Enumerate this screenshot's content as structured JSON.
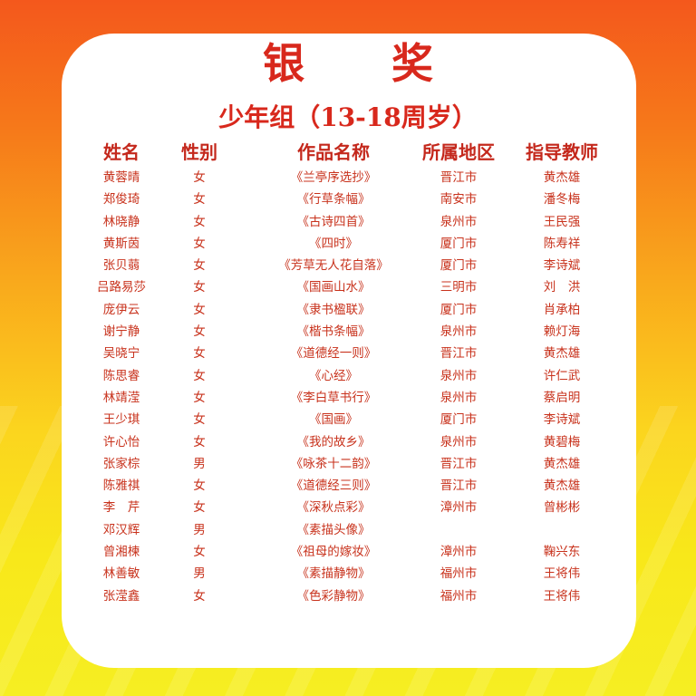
{
  "title": "银 奖",
  "subtitle": "少年组（13-18周岁）",
  "headers": {
    "name": "姓名",
    "gender": "性别",
    "work": "作品名称",
    "region": "所属地区",
    "teacher": "指导教师"
  },
  "rows": [
    {
      "name": "黄蓉晴",
      "gender": "女",
      "work": "《兰亭序选抄》",
      "region": "晋江市",
      "teacher": "黄杰雄"
    },
    {
      "name": "郑俊琦",
      "gender": "女",
      "work": "《行草条幅》",
      "region": "南安市",
      "teacher": "潘冬梅"
    },
    {
      "name": "林晓静",
      "gender": "女",
      "work": "《古诗四首》",
      "region": "泉州市",
      "teacher": "王民强"
    },
    {
      "name": "黄斯茵",
      "gender": "女",
      "work": "《四时》",
      "region": "厦门市",
      "teacher": "陈寿祥"
    },
    {
      "name": "张贝蒻",
      "gender": "女",
      "work": "《芳草无人花自落》",
      "region": "厦门市",
      "teacher": "李诗斌"
    },
    {
      "name": "吕路易莎",
      "gender": "女",
      "work": "《国画山水》",
      "region": "三明市",
      "teacher": "刘　洪"
    },
    {
      "name": "庞伊云",
      "gender": "女",
      "work": "《隶书楹联》",
      "region": "厦门市",
      "teacher": "肖承柏"
    },
    {
      "name": "谢宁静",
      "gender": "女",
      "work": "《楷书条幅》",
      "region": "泉州市",
      "teacher": "赖灯海"
    },
    {
      "name": "吴晓宁",
      "gender": "女",
      "work": "《道德经一则》",
      "region": "晋江市",
      "teacher": "黄杰雄"
    },
    {
      "name": "陈思睿",
      "gender": "女",
      "work": "《心经》",
      "region": "泉州市",
      "teacher": "许仁武"
    },
    {
      "name": "林靖滢",
      "gender": "女",
      "work": "《李白草书行》",
      "region": "泉州市",
      "teacher": "蔡启明"
    },
    {
      "name": "王少琪",
      "gender": "女",
      "work": "《国画》",
      "region": "厦门市",
      "teacher": "李诗斌"
    },
    {
      "name": "许心怡",
      "gender": "女",
      "work": "《我的故乡》",
      "region": "泉州市",
      "teacher": "黄碧梅"
    },
    {
      "name": "张家棕",
      "gender": "男",
      "work": "《咏茶十二韵》",
      "region": "晋江市",
      "teacher": "黄杰雄"
    },
    {
      "name": "陈雅祺",
      "gender": "女",
      "work": "《道德经三则》",
      "region": "晋江市",
      "teacher": "黄杰雄"
    },
    {
      "name": "李　芹",
      "gender": "女",
      "work": "《深秋点彩》",
      "region": "漳州市",
      "teacher": "曾彬彬"
    },
    {
      "name": "邓汉辉",
      "gender": "男",
      "work": "《素描头像》",
      "region": "",
      "teacher": ""
    },
    {
      "name": "曾湘楝",
      "gender": "女",
      "work": "《祖母的嫁妆》",
      "region": "漳州市",
      "teacher": "鞠兴东"
    },
    {
      "name": "林善敏",
      "gender": "男",
      "work": "《素描静物》",
      "region": "福州市",
      "teacher": "王将伟"
    },
    {
      "name": "张滢鑫",
      "gender": "女",
      "work": "《色彩静物》",
      "region": "福州市",
      "teacher": "王将伟"
    }
  ],
  "colors": {
    "text_red": "#c8321c",
    "title_red": "#d8281c",
    "bg_orange": "#f4581c",
    "bg_yellow": "#f6ee22"
  }
}
